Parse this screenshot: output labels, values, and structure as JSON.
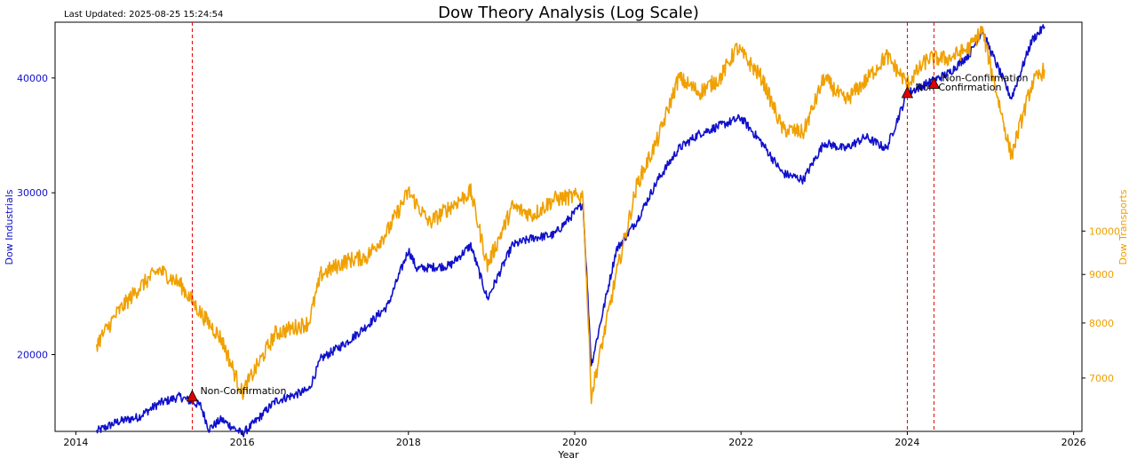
{
  "chart_data": {
    "type": "line",
    "title": "Dow Theory Analysis (Log Scale)",
    "last_updated": "Last Updated: 2025-08-25 15:24:54",
    "xlabel": "Year",
    "ylabel_left": "Dow Industrials",
    "ylabel_right": "Dow Transports",
    "x_ticks": [
      "2014",
      "2016",
      "2018",
      "2020",
      "2022",
      "2024",
      "2026"
    ],
    "xlim": [
      2013.75,
      2026.1
    ],
    "y_left": {
      "scale": "log",
      "lim": [
        16500,
        46000
      ],
      "ticks": [
        20000,
        30000,
        40000
      ],
      "tick_labels": [
        "20000",
        "30000",
        "40000"
      ]
    },
    "y_right": {
      "scale": "log",
      "lim": [
        6150,
        16600
      ],
      "ticks": [
        7000,
        8000,
        9000,
        10000
      ],
      "tick_labels": [
        "7000",
        "8000",
        "9000",
        "10000"
      ]
    },
    "colors": {
      "industrials": "#1010cc",
      "transports": "#f0a000",
      "signal": "#e00000"
    },
    "series": [
      {
        "name": "Dow Industrials",
        "axis": "left",
        "x": [
          2014.25,
          2014.5,
          2014.75,
          2015.0,
          2015.25,
          2015.5,
          2015.6,
          2015.75,
          2016.0,
          2016.1,
          2016.4,
          2016.8,
          2016.95,
          2017.25,
          2017.5,
          2017.75,
          2018.0,
          2018.1,
          2018.5,
          2018.75,
          2018.95,
          2019.25,
          2019.5,
          2019.75,
          2020.1,
          2020.2,
          2020.5,
          2020.75,
          2021.0,
          2021.25,
          2021.5,
          2021.75,
          2022.0,
          2022.25,
          2022.5,
          2022.75,
          2023.0,
          2023.25,
          2023.5,
          2023.75,
          2024.0,
          2024.25,
          2024.5,
          2024.75,
          2024.9,
          2025.25,
          2025.5,
          2025.65
        ],
        "values": [
          16500,
          16900,
          17100,
          17700,
          18000,
          17600,
          16600,
          17000,
          16400,
          16700,
          17800,
          18300,
          19800,
          20600,
          21500,
          22600,
          26000,
          24800,
          25000,
          26300,
          23000,
          26300,
          26800,
          27000,
          29200,
          19500,
          26000,
          28000,
          31000,
          33500,
          34800,
          35500,
          36200,
          34000,
          31500,
          31000,
          34000,
          33500,
          34500,
          33500,
          38500,
          39500,
          40500,
          42500,
          45000,
          38000,
          44000,
          45500
        ]
      },
      {
        "name": "Dow Transports",
        "axis": "right",
        "x": [
          2014.25,
          2014.5,
          2014.75,
          2015.0,
          2015.25,
          2015.5,
          2015.75,
          2016.0,
          2016.1,
          2016.4,
          2016.8,
          2016.95,
          2017.25,
          2017.5,
          2017.75,
          2018.0,
          2018.25,
          2018.5,
          2018.75,
          2018.95,
          2019.25,
          2019.5,
          2019.75,
          2020.1,
          2020.2,
          2020.5,
          2020.75,
          2021.0,
          2021.25,
          2021.5,
          2021.75,
          2021.95,
          2022.25,
          2022.5,
          2022.75,
          2023.0,
          2023.25,
          2023.5,
          2023.75,
          2024.0,
          2024.25,
          2024.5,
          2024.75,
          2024.9,
          2025.25,
          2025.5,
          2025.65
        ],
        "values": [
          7600,
          8200,
          8700,
          9100,
          8800,
          8200,
          7700,
          6750,
          7000,
          7800,
          8000,
          9000,
          9300,
          9400,
          10000,
          11000,
          10200,
          10600,
          11000,
          9200,
          10600,
          10400,
          10800,
          10900,
          6700,
          9000,
          11200,
          12500,
          14500,
          14000,
          14500,
          15600,
          14500,
          12800,
          12700,
          14500,
          13700,
          14400,
          15300,
          14300,
          15200,
          15200,
          15600,
          16300,
          12000,
          14300,
          14800
        ]
      }
    ],
    "signals": [
      {
        "x": 2015.4,
        "label": "Non-Confirmation",
        "marker_y_left": 18000
      },
      {
        "x": 2024.0,
        "label": "Non-Confirmation",
        "marker_y_left": 38500
      },
      {
        "x": 2024.32,
        "label": "Non-Confirmation",
        "marker_y_left": 39400
      }
    ]
  }
}
